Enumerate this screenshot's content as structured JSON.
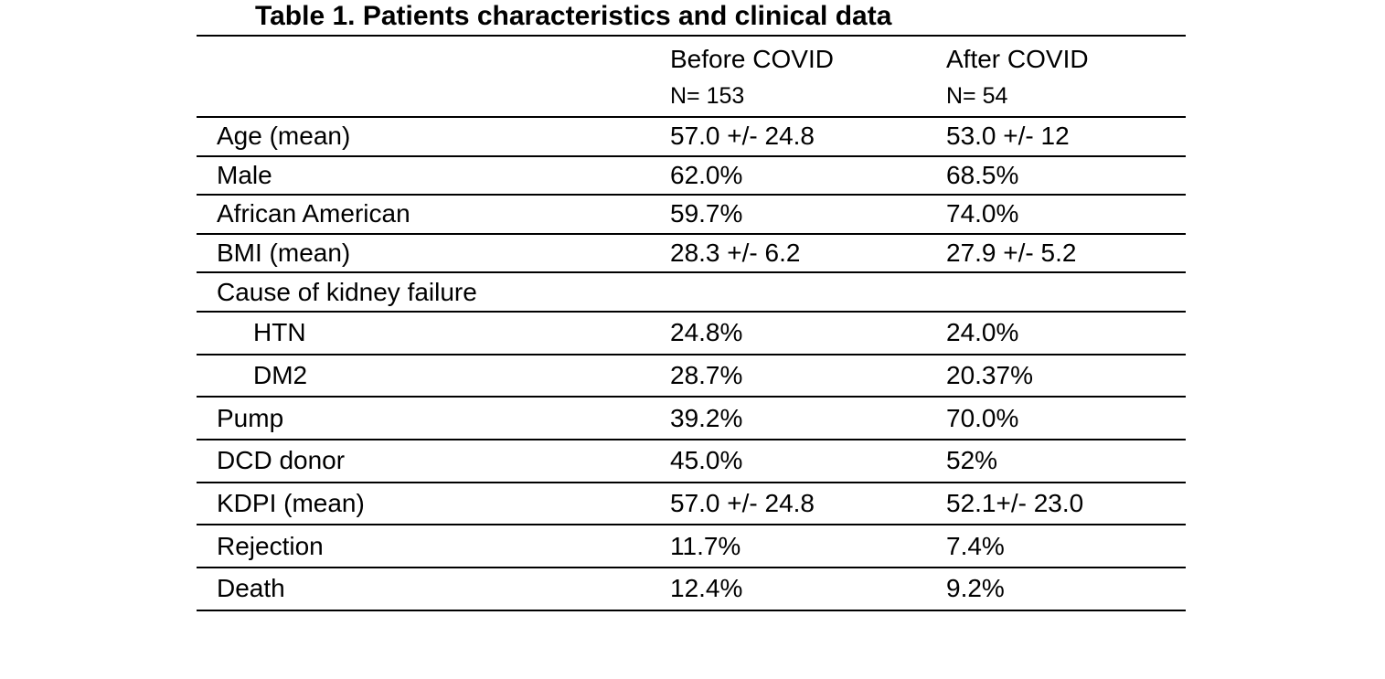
{
  "table": {
    "title": "Table 1. Patients characteristics and clinical data",
    "header": {
      "before": {
        "label": "Before COVID",
        "n": "N= 153"
      },
      "after": {
        "label": "After COVID",
        "n": "N= 54"
      }
    },
    "rows": [
      {
        "label": "Age (mean)",
        "before": "57.0 +/- 24.8",
        "after": "53.0 +/- 12"
      },
      {
        "label": "Male",
        "before": "62.0%",
        "after": "68.5%"
      },
      {
        "label": "African American",
        "before": "59.7%",
        "after": "74.0%"
      },
      {
        "label": "BMI (mean)",
        "before": "28.3 +/- 6.2",
        "after": "27.9 +/- 5.2"
      },
      {
        "label": "Cause of kidney failure",
        "before": "",
        "after": ""
      },
      {
        "label": "HTN",
        "before": "24.8%",
        "after": "24.0%"
      },
      {
        "label": "DM2",
        "before": "28.7%",
        "after": "20.37%"
      },
      {
        "label": "Pump",
        "before": "39.2%",
        "after": "70.0%"
      },
      {
        "label": "DCD donor",
        "before": "45.0%",
        "after": "52%"
      },
      {
        "label": "KDPI (mean)",
        "before": "57.0 +/- 24.8",
        "after": "52.1+/- 23.0"
      },
      {
        "label": "Rejection",
        "before": "11.7%",
        "after": "7.4%"
      },
      {
        "label": "Death",
        "before": "12.4%",
        "after": "9.2%"
      }
    ]
  },
  "chart_data": {
    "type": "table",
    "title": "Table 1. Patients characteristics and clinical data",
    "column_headers": [
      "",
      "Before COVID",
      "After COVID"
    ],
    "column_subheaders": [
      "",
      "N= 153",
      "N= 54"
    ],
    "rows": [
      [
        "Age (mean)",
        "57.0 +/- 24.8",
        "53.0 +/- 12"
      ],
      [
        "Male",
        "62.0%",
        "68.5%"
      ],
      [
        "African American",
        "59.7%",
        "74.0%"
      ],
      [
        "BMI (mean)",
        "28.3 +/- 6.2",
        "27.9 +/- 5.2"
      ],
      [
        "Cause of kidney failure",
        "",
        ""
      ],
      [
        "HTN",
        "24.8%",
        "24.0%"
      ],
      [
        "DM2",
        "28.7%",
        "20.37%"
      ],
      [
        "Pump",
        "39.2%",
        "70.0%"
      ],
      [
        "DCD donor",
        "45.0%",
        "52%"
      ],
      [
        "KDPI (mean)",
        "57.0 +/- 24.8",
        "52.1+/- 23.0"
      ],
      [
        "Rejection",
        "11.7%",
        "7.4%"
      ],
      [
        "Death",
        "12.4%",
        "9.2%"
      ]
    ]
  },
  "colors": {
    "text": "#000000",
    "background": "#ffffff",
    "rule": "#000000"
  }
}
